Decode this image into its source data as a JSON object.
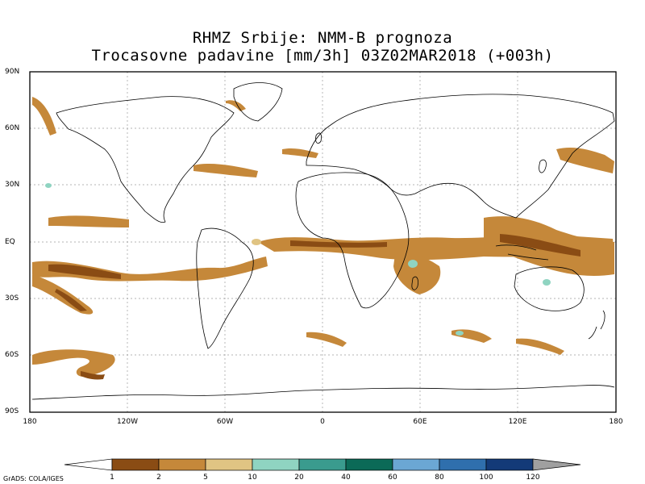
{
  "title": {
    "line1": "RHMZ Srbije: NMM-B prognoza",
    "line2": "Trocasovne padavine [mm/3h] 03Z02MAR2018 (+003h)"
  },
  "axes": {
    "y_labels": [
      "90N",
      "60N",
      "30N",
      "EQ",
      "30S",
      "60S",
      "90S"
    ],
    "x_labels": [
      "180",
      "120W",
      "60W",
      "0",
      "60E",
      "120E",
      "180"
    ]
  },
  "colorbar": {
    "labels": [
      "1",
      "2",
      "5",
      "10",
      "20",
      "40",
      "60",
      "80",
      "100",
      "120"
    ],
    "colors": [
      "#8a4c14",
      "#c5883a",
      "#e0c483",
      "#8fd4c1",
      "#3a9b8e",
      "#0b6a57",
      "#6ba7d4",
      "#2f6fad",
      "#133a78",
      "#a0a0a0"
    ]
  },
  "credit": "GrADS: COLA/IGES",
  "palette": {
    "frame": "#000000",
    "grid": "#9a9a9a",
    "coast": "#000000"
  }
}
